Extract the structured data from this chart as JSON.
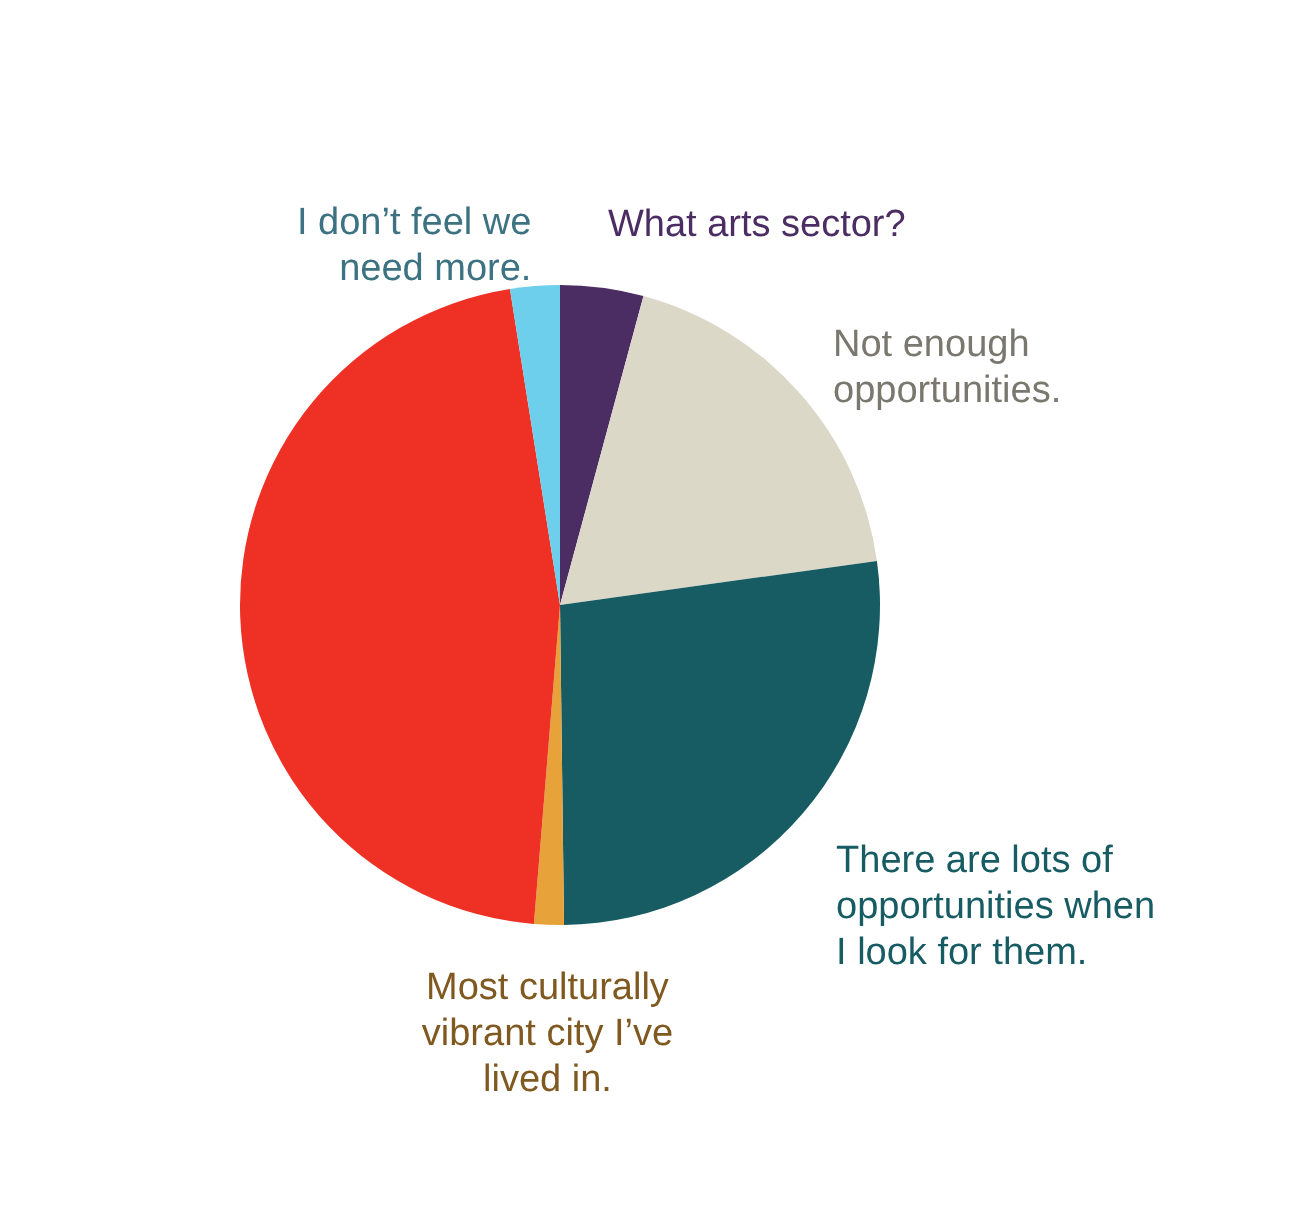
{
  "chart_data": {
    "type": "pie",
    "categories": [
      "What arts sector?",
      "Not enough opportunities.",
      "There are lots of opportunities when I look for them.",
      "Most culturally vibrant city I’ve lived in.",
      null,
      "I don’t feel we need more."
    ],
    "values": [
      4.2,
      18.6,
      27.0,
      1.5,
      46.2,
      2.5
    ],
    "colors": [
      "#4b2d63",
      "#dcd8c8",
      "#175c63",
      "#e8a23a",
      "#ee3124",
      "#6dcfeb"
    ]
  }
}
